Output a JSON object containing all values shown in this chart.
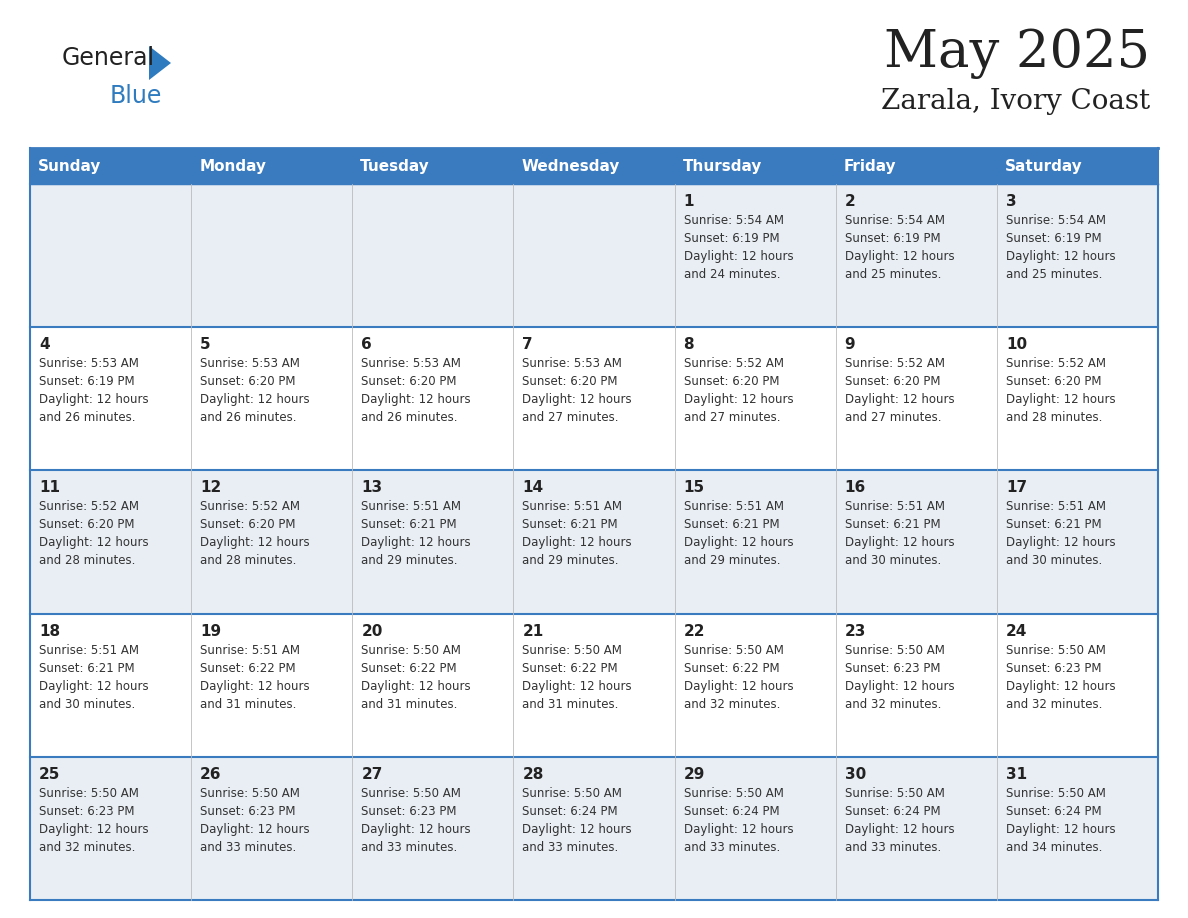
{
  "title": "May 2025",
  "subtitle": "Zarala, Ivory Coast",
  "header_bg": "#3a7abf",
  "header_text": "#ffffff",
  "row_bg_even": "#e8eef4",
  "row_bg_odd": "#ffffff",
  "border_color": "#3a7abf",
  "text_color": "#222222",
  "cell_text_color": "#333333",
  "days_of_week": [
    "Sunday",
    "Monday",
    "Tuesday",
    "Wednesday",
    "Thursday",
    "Friday",
    "Saturday"
  ],
  "logo_general_color": "#222222",
  "logo_blue_color": "#2e7bbf",
  "logo_triangle_color": "#2e7bbf",
  "calendar": [
    [
      {
        "day": "",
        "sunrise": "",
        "sunset": "",
        "daylight": ""
      },
      {
        "day": "",
        "sunrise": "",
        "sunset": "",
        "daylight": ""
      },
      {
        "day": "",
        "sunrise": "",
        "sunset": "",
        "daylight": ""
      },
      {
        "day": "",
        "sunrise": "",
        "sunset": "",
        "daylight": ""
      },
      {
        "day": "1",
        "sunrise": "5:54 AM",
        "sunset": "6:19 PM",
        "daylight": "12 hours and 24 minutes."
      },
      {
        "day": "2",
        "sunrise": "5:54 AM",
        "sunset": "6:19 PM",
        "daylight": "12 hours and 25 minutes."
      },
      {
        "day": "3",
        "sunrise": "5:54 AM",
        "sunset": "6:19 PM",
        "daylight": "12 hours and 25 minutes."
      }
    ],
    [
      {
        "day": "4",
        "sunrise": "5:53 AM",
        "sunset": "6:19 PM",
        "daylight": "12 hours and 26 minutes."
      },
      {
        "day": "5",
        "sunrise": "5:53 AM",
        "sunset": "6:20 PM",
        "daylight": "12 hours and 26 minutes."
      },
      {
        "day": "6",
        "sunrise": "5:53 AM",
        "sunset": "6:20 PM",
        "daylight": "12 hours and 26 minutes."
      },
      {
        "day": "7",
        "sunrise": "5:53 AM",
        "sunset": "6:20 PM",
        "daylight": "12 hours and 27 minutes."
      },
      {
        "day": "8",
        "sunrise": "5:52 AM",
        "sunset": "6:20 PM",
        "daylight": "12 hours and 27 minutes."
      },
      {
        "day": "9",
        "sunrise": "5:52 AM",
        "sunset": "6:20 PM",
        "daylight": "12 hours and 27 minutes."
      },
      {
        "day": "10",
        "sunrise": "5:52 AM",
        "sunset": "6:20 PM",
        "daylight": "12 hours and 28 minutes."
      }
    ],
    [
      {
        "day": "11",
        "sunrise": "5:52 AM",
        "sunset": "6:20 PM",
        "daylight": "12 hours and 28 minutes."
      },
      {
        "day": "12",
        "sunrise": "5:52 AM",
        "sunset": "6:20 PM",
        "daylight": "12 hours and 28 minutes."
      },
      {
        "day": "13",
        "sunrise": "5:51 AM",
        "sunset": "6:21 PM",
        "daylight": "12 hours and 29 minutes."
      },
      {
        "day": "14",
        "sunrise": "5:51 AM",
        "sunset": "6:21 PM",
        "daylight": "12 hours and 29 minutes."
      },
      {
        "day": "15",
        "sunrise": "5:51 AM",
        "sunset": "6:21 PM",
        "daylight": "12 hours and 29 minutes."
      },
      {
        "day": "16",
        "sunrise": "5:51 AM",
        "sunset": "6:21 PM",
        "daylight": "12 hours and 30 minutes."
      },
      {
        "day": "17",
        "sunrise": "5:51 AM",
        "sunset": "6:21 PM",
        "daylight": "12 hours and 30 minutes."
      }
    ],
    [
      {
        "day": "18",
        "sunrise": "5:51 AM",
        "sunset": "6:21 PM",
        "daylight": "12 hours and 30 minutes."
      },
      {
        "day": "19",
        "sunrise": "5:51 AM",
        "sunset": "6:22 PM",
        "daylight": "12 hours and 31 minutes."
      },
      {
        "day": "20",
        "sunrise": "5:50 AM",
        "sunset": "6:22 PM",
        "daylight": "12 hours and 31 minutes."
      },
      {
        "day": "21",
        "sunrise": "5:50 AM",
        "sunset": "6:22 PM",
        "daylight": "12 hours and 31 minutes."
      },
      {
        "day": "22",
        "sunrise": "5:50 AM",
        "sunset": "6:22 PM",
        "daylight": "12 hours and 32 minutes."
      },
      {
        "day": "23",
        "sunrise": "5:50 AM",
        "sunset": "6:23 PM",
        "daylight": "12 hours and 32 minutes."
      },
      {
        "day": "24",
        "sunrise": "5:50 AM",
        "sunset": "6:23 PM",
        "daylight": "12 hours and 32 minutes."
      }
    ],
    [
      {
        "day": "25",
        "sunrise": "5:50 AM",
        "sunset": "6:23 PM",
        "daylight": "12 hours and 32 minutes."
      },
      {
        "day": "26",
        "sunrise": "5:50 AM",
        "sunset": "6:23 PM",
        "daylight": "12 hours and 33 minutes."
      },
      {
        "day": "27",
        "sunrise": "5:50 AM",
        "sunset": "6:23 PM",
        "daylight": "12 hours and 33 minutes."
      },
      {
        "day": "28",
        "sunrise": "5:50 AM",
        "sunset": "6:24 PM",
        "daylight": "12 hours and 33 minutes."
      },
      {
        "day": "29",
        "sunrise": "5:50 AM",
        "sunset": "6:24 PM",
        "daylight": "12 hours and 33 minutes."
      },
      {
        "day": "30",
        "sunrise": "5:50 AM",
        "sunset": "6:24 PM",
        "daylight": "12 hours and 33 minutes."
      },
      {
        "day": "31",
        "sunrise": "5:50 AM",
        "sunset": "6:24 PM",
        "daylight": "12 hours and 34 minutes."
      }
    ]
  ]
}
